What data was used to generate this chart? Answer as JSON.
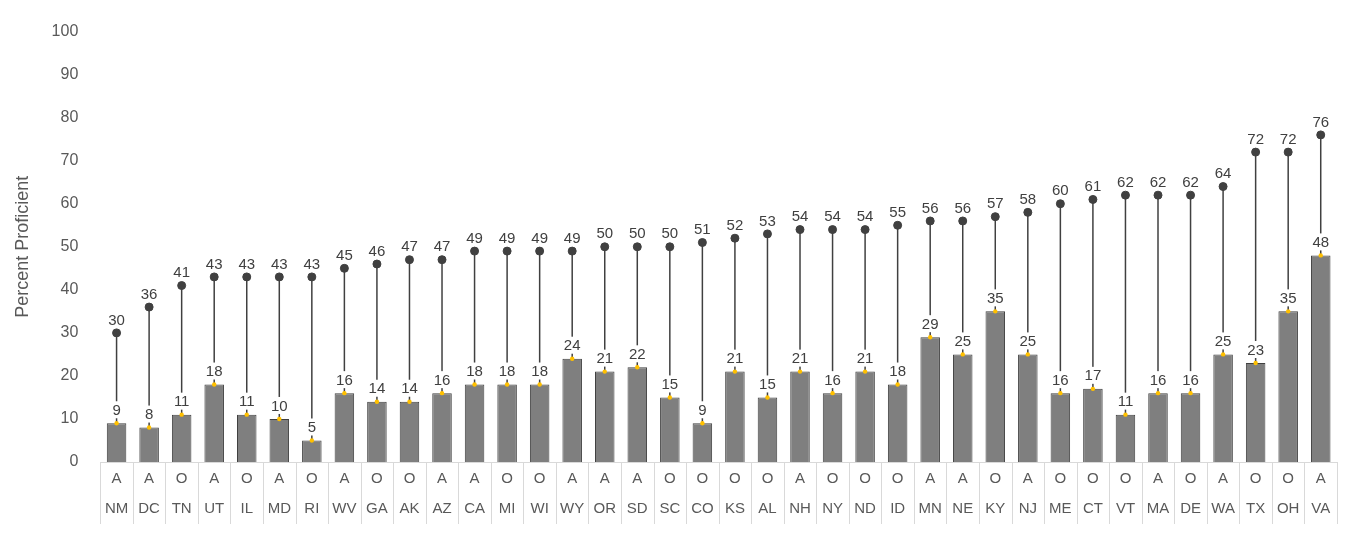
{
  "chart_data": {
    "type": "bar",
    "ylabel": "Percent Proficient",
    "categories": [
      "A\nNM",
      "A\nDC",
      "O\nTN",
      "A\nUT",
      "O\nIL",
      "A\nMD",
      "O\nRI",
      "A\nWV",
      "O\nGA",
      "O\nAK",
      "A\nAZ",
      "A\nCA",
      "O\nMI",
      "O\nWI",
      "A\nWY",
      "A\nOR",
      "A\nSD",
      "O\nSC",
      "O\nCO",
      "O\nKS",
      "O\nAL",
      "A\nNH",
      "O\nNY",
      "O\nND",
      "O\nID",
      "A\nMN",
      "A\nNE",
      "O\nKY",
      "A\nNJ",
      "O\nME",
      "O\nCT",
      "O\nVT",
      "A\nMA",
      "O\nDE",
      "A\nWA",
      "O\nTX",
      "O\nOH",
      "A\nVA"
    ],
    "series": [
      {
        "color": "#7f7f7f",
        "values": [
          9,
          8,
          11,
          18,
          11,
          10,
          5,
          16,
          14,
          14,
          16,
          18,
          18,
          18,
          24,
          21,
          22,
          15,
          9,
          21,
          15,
          21,
          16,
          21,
          18,
          29,
          25,
          35,
          25,
          16,
          17,
          11,
          16,
          16,
          25,
          23,
          35,
          48
        ]
      },
      {
        "type": "lollipop",
        "color": "#404040",
        "values": [
          30,
          36,
          41,
          43,
          43,
          43,
          43,
          45,
          46,
          47,
          47,
          49,
          49,
          49,
          49,
          50,
          50,
          50,
          51,
          52,
          53,
          54,
          54,
          54,
          55,
          56,
          56,
          57,
          58,
          60,
          61,
          62,
          62,
          62,
          64,
          72,
          72,
          76
        ]
      }
    ],
    "ylim": [
      0,
      100
    ],
    "yticks": [
      0,
      10,
      20,
      30,
      40,
      50,
      60,
      70,
      80,
      90,
      100
    ],
    "grid": "x",
    "legend": false,
    "data_labels": true
  }
}
